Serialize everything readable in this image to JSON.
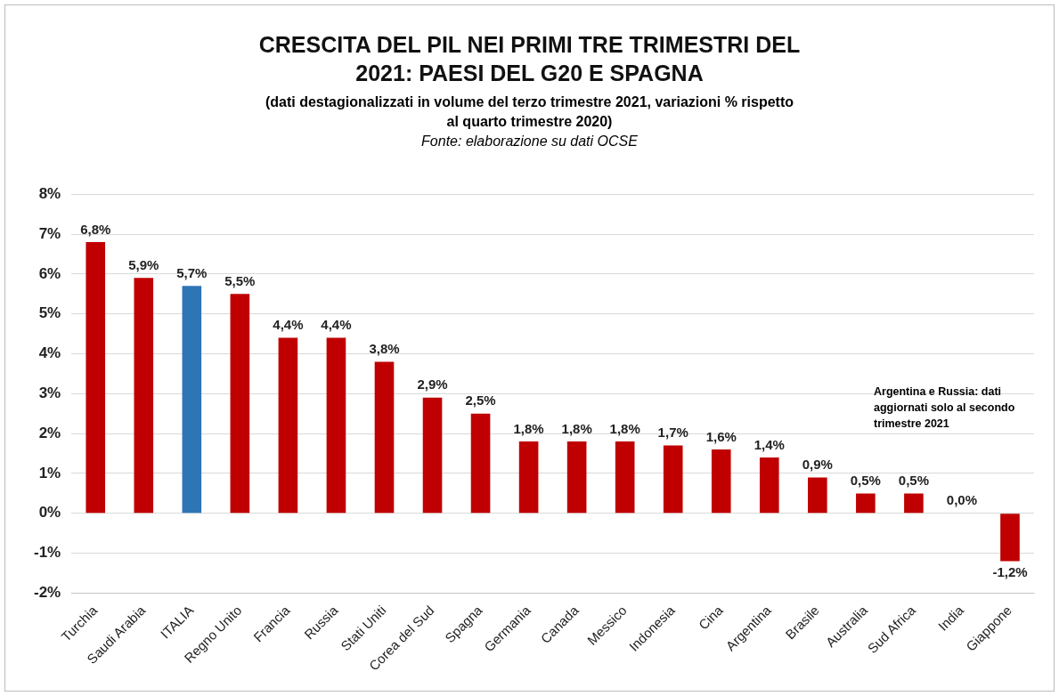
{
  "chart_data": {
    "type": "bar",
    "title": "CRESCITA DEL PIL NEI PRIMI TRE TRIMESTRI DEL 2021: PAESI DEL G20 E SPAGNA",
    "subtitle": "(dati destagionalizzati in volume del terzo trimestre 2021, variazioni % rispetto al quarto trimestre 2020)",
    "annotations": [
      "Fonte: elaborazione su dati OCSE",
      "Argentina e Russia: dati aggiornati solo al secondo trimestre 2021"
    ],
    "categories": [
      "Turchia",
      "Saudi Arabia",
      "ITALIA",
      "Regno Unito",
      "Francia",
      "Russia",
      "Stati Uniti",
      "Corea del Sud",
      "Spagna",
      "Germania",
      "Canada",
      "Messico",
      "Indonesia",
      "Cina",
      "Argentina",
      "Brasile",
      "Australia",
      "Sud Africa",
      "India",
      "Giappone"
    ],
    "values": [
      6.8,
      5.9,
      5.7,
      5.5,
      4.4,
      4.4,
      3.8,
      2.9,
      2.5,
      1.8,
      1.8,
      1.8,
      1.7,
      1.6,
      1.4,
      0.9,
      0.5,
      0.5,
      0.0,
      -1.2
    ],
    "value_labels": [
      "6,8%",
      "5,9%",
      "5,7%",
      "5,5%",
      "4,4%",
      "4,4%",
      "3,8%",
      "2,9%",
      "2,5%",
      "1,8%",
      "1,8%",
      "1,8%",
      "1,7%",
      "1,6%",
      "1,4%",
      "0,9%",
      "0,5%",
      "0,5%",
      "0,0%",
      "-1,2%"
    ],
    "colors": [
      "#c00000",
      "#c00000",
      "#2e75b6",
      "#c00000",
      "#c00000",
      "#c00000",
      "#c00000",
      "#c00000",
      "#c00000",
      "#c00000",
      "#c00000",
      "#c00000",
      "#c00000",
      "#c00000",
      "#c00000",
      "#c00000",
      "#c00000",
      "#c00000",
      "#c00000",
      "#c00000"
    ],
    "ylim": [
      -2,
      8
    ],
    "yticks": [
      {
        "value": -2,
        "label": "-2%"
      },
      {
        "value": -1,
        "label": "-1%"
      },
      {
        "value": 0,
        "label": "0%"
      },
      {
        "value": 1,
        "label": "1%"
      },
      {
        "value": 2,
        "label": "2%"
      },
      {
        "value": 3,
        "label": "3%"
      },
      {
        "value": 4,
        "label": "4%"
      },
      {
        "value": 5,
        "label": "5%"
      },
      {
        "value": 6,
        "label": "6%"
      },
      {
        "value": 7,
        "label": "7%"
      },
      {
        "value": 8,
        "label": "8%"
      }
    ],
    "grid": "y",
    "legend": false
  }
}
